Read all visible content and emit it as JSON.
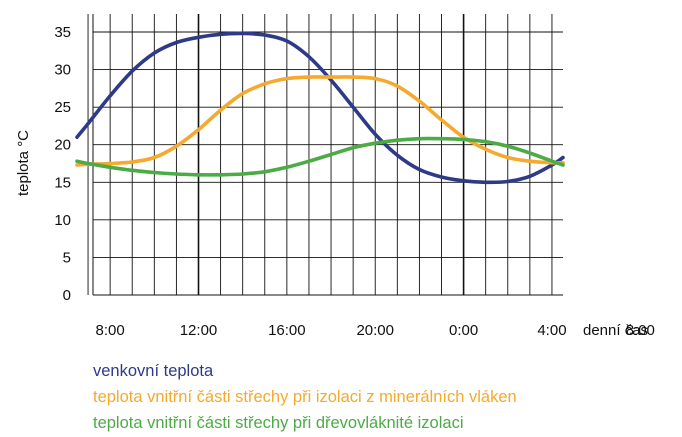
{
  "chart_data": {
    "type": "line",
    "title": "",
    "xlabel": "denní čas",
    "ylabel": "teplota °C",
    "ylim": [
      0,
      35
    ],
    "xlim": [
      6.5,
      28.5
    ],
    "x_ticks": [
      8,
      12,
      16,
      20,
      24,
      28,
      32
    ],
    "x_tick_labels": [
      "8:00",
      "12:00",
      "16:00",
      "20:00",
      "0:00",
      "4:00",
      "8:00"
    ],
    "y_ticks": [
      0,
      5,
      10,
      15,
      20,
      25,
      30,
      35
    ],
    "y_tick_labels": [
      "0",
      "5",
      "10",
      "15",
      "20",
      "25",
      "30",
      "35"
    ],
    "grid": true,
    "legend_position": "bottom",
    "series": [
      {
        "name": "venkovní teplota",
        "color": "#2e3a87",
        "x": [
          6.5,
          7,
          8,
          9,
          10,
          11,
          12,
          13,
          14,
          15,
          16,
          17,
          18,
          19,
          20,
          21,
          22,
          23,
          24,
          25,
          26,
          27,
          28,
          28.5
        ],
        "y": [
          21,
          22.8,
          26.5,
          29.8,
          32.2,
          33.6,
          34.3,
          34.7,
          34.8,
          34.6,
          33.8,
          31.7,
          28.6,
          25,
          21.4,
          18.6,
          16.7,
          15.7,
          15.2,
          15,
          15.1,
          15.8,
          17.3,
          18.3
        ]
      },
      {
        "name": "teplota vnitřní části střechy při izolaci z minerálních vláken",
        "color": "#f5a92e",
        "x": [
          6.5,
          7,
          8,
          9,
          10,
          11,
          12,
          13,
          14,
          15,
          16,
          17,
          18,
          19,
          20,
          21,
          22,
          23,
          24,
          25,
          26,
          27,
          28,
          28.5
        ],
        "y": [
          17.3,
          17.4,
          17.5,
          17.7,
          18.3,
          19.8,
          22,
          24.6,
          26.8,
          28.1,
          28.8,
          29,
          29,
          29,
          28.8,
          27.8,
          25.8,
          23.3,
          21,
          19.4,
          18.3,
          17.8,
          17.6,
          17.6
        ]
      },
      {
        "name": "teplota vnitřní části střechy při dřevovláknité izolaci",
        "color": "#4cab45",
        "x": [
          6.5,
          7,
          8,
          9,
          10,
          11,
          12,
          13,
          14,
          15,
          16,
          17,
          18,
          19,
          20,
          21,
          22,
          23,
          24,
          25,
          26,
          27,
          28,
          28.5
        ],
        "y": [
          17.8,
          17.5,
          17,
          16.6,
          16.3,
          16.1,
          16,
          16,
          16.1,
          16.4,
          17,
          17.8,
          18.7,
          19.6,
          20.2,
          20.6,
          20.8,
          20.8,
          20.7,
          20.4,
          19.8,
          18.9,
          17.8,
          17.3
        ]
      }
    ]
  }
}
